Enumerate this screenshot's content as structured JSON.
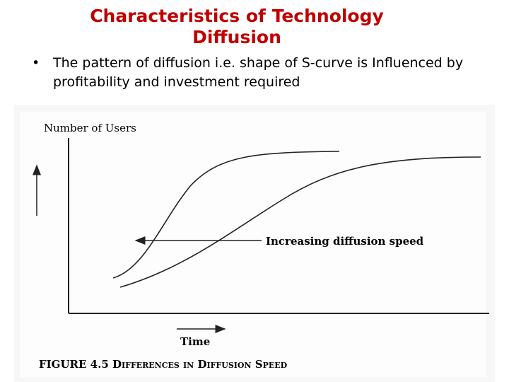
{
  "header": {
    "title_lines": [
      "Characteristics of Technology",
      "Diffusion"
    ]
  },
  "bullets": [
    "The pattern of diffusion i.e. shape of S-curve is Influenced by profitability and  investment required"
  ],
  "figure": {
    "y_axis_label": "Number of  Users",
    "x_axis_label": "Time",
    "annotation": "Increasing diffusion speed",
    "caption": "FIGURE 4.5  Differences in Diffusion Speed"
  }
}
